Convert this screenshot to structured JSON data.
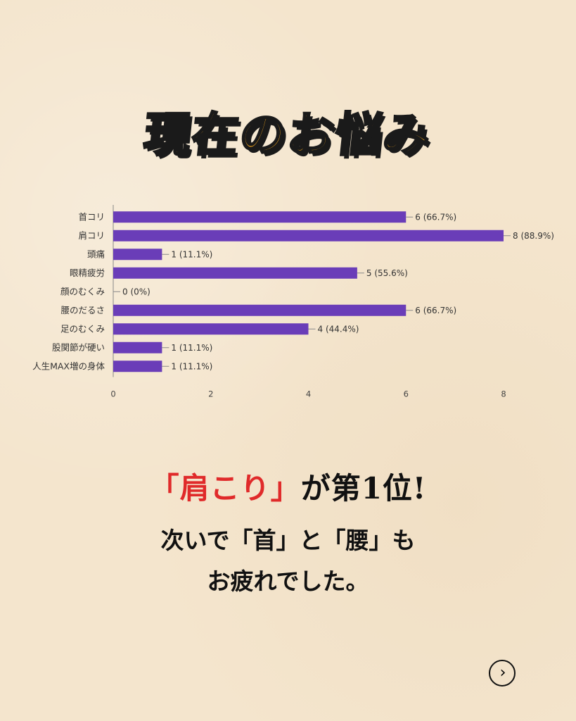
{
  "header": {
    "title": "現在のお悩み"
  },
  "chart_data": {
    "type": "bar",
    "orientation": "horizontal",
    "categories": [
      "首コリ",
      "肩コリ",
      "頭痛",
      "眼精疲労",
      "顔のむくみ",
      "腰のだるさ",
      "足のむくみ",
      "股関節が硬い",
      "人生MAX増の身体"
    ],
    "values": [
      6,
      8,
      1,
      5,
      0,
      6,
      4,
      1,
      1
    ],
    "value_labels": [
      "6 (66.7%)",
      "8 (88.9%)",
      "1 (11.1%)",
      "5 (55.6%)",
      "0 (0%)",
      "6 (66.7%)",
      "4 (44.4%)",
      "1 (11.1%)",
      "1 (11.1%)"
    ],
    "xlim": [
      0,
      8
    ],
    "xticks": [
      "0",
      "2",
      "4",
      "6",
      "8"
    ],
    "bar_color": "#6a3db8",
    "grid": false
  },
  "message": {
    "quote_open": "「",
    "highlight": "肩こり",
    "quote_close": "」",
    "rest": "が第1位!",
    "line2": "次いで「首」と「腰」も",
    "line3": "お疲れでした。"
  },
  "nav": {
    "next_icon": "chevron-right-icon",
    "next_glyph": "›"
  },
  "colors": {
    "background": "#f4e5cd",
    "title_fill": "#f6a81c",
    "highlight": "#e02a2a"
  }
}
